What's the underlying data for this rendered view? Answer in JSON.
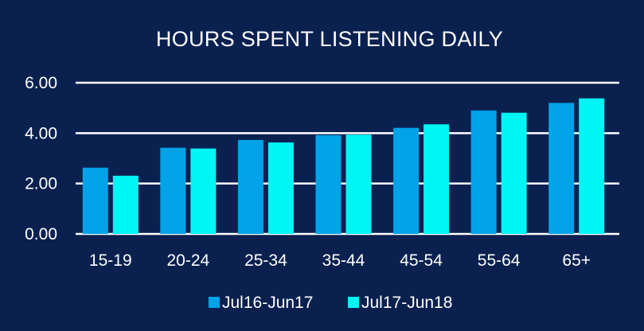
{
  "chart_data": {
    "type": "bar",
    "title": "HOURS SPENT LISTENING DAILY",
    "xlabel": "",
    "ylabel": "",
    "categories": [
      "15-19",
      "20-24",
      "25-34",
      "35-44",
      "45-54",
      "55-64",
      "65+"
    ],
    "series": [
      {
        "name": "Jul16-Jun17",
        "color": "#00a3e8",
        "values": [
          2.63,
          3.42,
          3.73,
          3.92,
          4.21,
          4.9,
          5.2
        ]
      },
      {
        "name": "Jul17-Jun18",
        "color": "#00f5f5",
        "values": [
          2.31,
          3.39,
          3.63,
          3.94,
          4.35,
          4.81,
          5.38
        ]
      }
    ],
    "yticks": [
      "0.00",
      "2.00",
      "4.00",
      "6.00"
    ],
    "ylim": [
      0,
      6
    ],
    "grid": true,
    "legend_position": "bottom",
    "colors": {
      "background": "#0a2150",
      "gridline": "#ffffff",
      "text": "#ffffff"
    }
  }
}
